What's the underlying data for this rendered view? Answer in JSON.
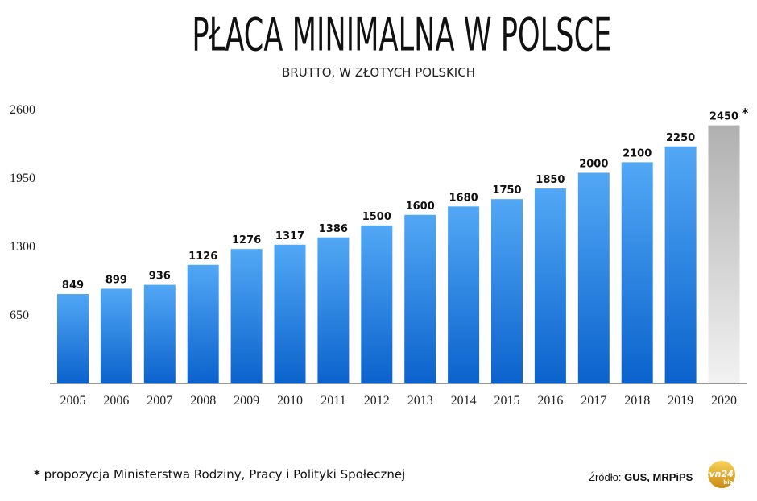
{
  "chart_data": {
    "type": "bar",
    "title": "PŁACA MINIMALNA W POLSCE",
    "subtitle": "BRUTTO, W ZŁOTYCH POLSKICH",
    "categories": [
      "2005",
      "2006",
      "2007",
      "2008",
      "2009",
      "2010",
      "2011",
      "2012",
      "2013",
      "2014",
      "2015",
      "2016",
      "2017",
      "2018",
      "2019",
      "2020"
    ],
    "values": [
      849,
      899,
      936,
      1126,
      1276,
      1317,
      1386,
      1500,
      1600,
      1680,
      1750,
      1850,
      2000,
      2100,
      2250,
      2450
    ],
    "data_labels": [
      "849",
      "899",
      "936",
      "1126",
      "1276",
      "1317",
      "1386",
      "1500",
      "1600",
      "1680",
      "1750",
      "1850",
      "2000",
      "2100",
      "2250",
      "2450"
    ],
    "highlight_marker": "*",
    "highlight_category": "2020",
    "yticks": [
      650,
      1300,
      1950,
      2600
    ],
    "ylim": [
      0,
      2600
    ],
    "grid": false,
    "colors": {
      "bar_top": "#52a8f5",
      "bar_bottom": "#0b62cc",
      "highlight_top": "#b0b0b0",
      "highlight_bottom": "#f2f2f2"
    }
  },
  "footnote": {
    "marker": "*",
    "text": " propozycja Ministerstwa Rodziny, Pracy i Polityki Społecznej"
  },
  "source": {
    "label": "Źródło:",
    "value": "GUS, MRPiPS"
  },
  "logo": {
    "brand": "tvn24",
    "sub": "bis"
  }
}
